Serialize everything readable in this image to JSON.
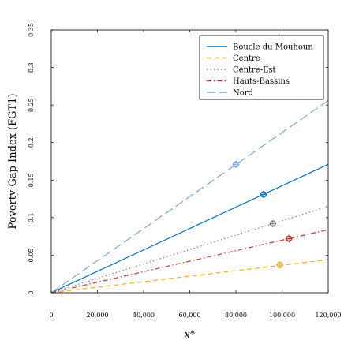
{
  "chart_data": {
    "type": "line",
    "title": "",
    "xlabel": "x*",
    "ylabel": "Poverty Gap Index (FGT1)",
    "xlim": [
      0,
      120000
    ],
    "ylim": [
      0,
      0.35
    ],
    "x_ticks": [
      0,
      20000,
      40000,
      60000,
      80000,
      100000,
      120000
    ],
    "x_tick_labels": [
      "0",
      "20,000",
      "40,000",
      "60,000",
      "80,000",
      "100,000",
      "120,000"
    ],
    "y_ticks": [
      0,
      0.05,
      0.1,
      0.15,
      0.2,
      0.25,
      0.3,
      0.35
    ],
    "y_tick_labels": [
      "0",
      "0.05",
      "0.1",
      "0.15",
      "0.2",
      "0.25",
      "0.3",
      "0.35"
    ],
    "grid": false,
    "legend_position": "top-right",
    "series": [
      {
        "name": "Boucle du Mouhoun",
        "x": [
          0,
          120000
        ],
        "y": [
          0,
          0.171
        ],
        "marker": {
          "x": 92000,
          "y": 0.131
        },
        "color": "#0072bd",
        "dash": "solid"
      },
      {
        "name": "Centre",
        "x": [
          0,
          120000
        ],
        "y": [
          0,
          0.044
        ],
        "marker": {
          "x": 99000,
          "y": 0.037
        },
        "color": "#edb120",
        "dash": "dashed"
      },
      {
        "name": "Centre-Est",
        "x": [
          0,
          120000
        ],
        "y": [
          0,
          0.115
        ],
        "marker": {
          "x": 96000,
          "y": 0.092
        },
        "color": "#808080",
        "dash": "dotted"
      },
      {
        "name": "Hauts-Bassins",
        "x": [
          0,
          120000
        ],
        "y": [
          0,
          0.084
        ],
        "marker": {
          "x": 103000,
          "y": 0.072
        },
        "color": "#c0392b",
        "dash": "dashdot"
      },
      {
        "name": "Nord",
        "x": [
          0,
          120000
        ],
        "y": [
          0,
          0.256
        ],
        "marker": {
          "x": 80000,
          "y": 0.171
        },
        "color": "#7aa6d6",
        "dash": "longdash"
      }
    ]
  }
}
